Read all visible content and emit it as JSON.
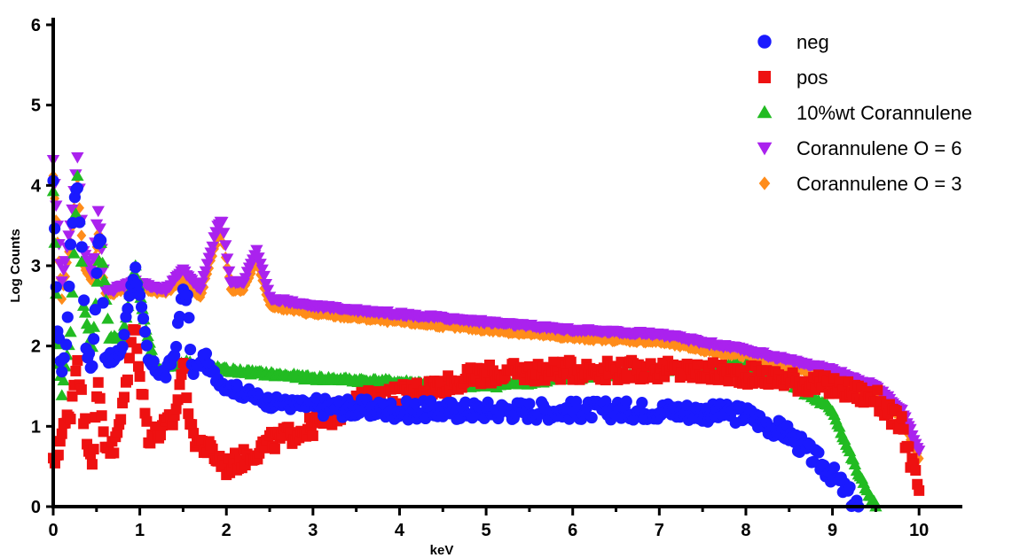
{
  "chart_data": {
    "type": "scatter",
    "xlabel": "keV",
    "ylabel": "Log Counts",
    "xlim": [
      0,
      10.5
    ],
    "ylim": [
      0,
      6
    ],
    "x_ticks": [
      0,
      1,
      2,
      3,
      4,
      5,
      6,
      7,
      8,
      9,
      10
    ],
    "y_ticks": [
      0,
      1,
      2,
      3,
      4,
      5,
      6
    ],
    "legend_position": "top-right",
    "series": [
      {
        "name": "neg",
        "color": "#1a1aff",
        "marker": "circle",
        "x": [
          0.0,
          0.05,
          0.1,
          0.15,
          0.2,
          0.25,
          0.28,
          0.33,
          0.38,
          0.45,
          0.52,
          0.55,
          0.6,
          0.7,
          0.8,
          0.9,
          0.95,
          1.0,
          1.1,
          1.2,
          1.3,
          1.4,
          1.5,
          1.55,
          1.6,
          1.7,
          1.75,
          1.8,
          2.0,
          2.5,
          3.0,
          4.0,
          5.0,
          6.0,
          7.0,
          8.0,
          8.5,
          8.8,
          9.0,
          9.3
        ],
        "y": [
          4.0,
          2.2,
          1.7,
          2.0,
          3.2,
          3.9,
          4.0,
          3.2,
          2.0,
          1.7,
          3.3,
          3.3,
          1.9,
          1.8,
          2.0,
          2.8,
          2.95,
          2.6,
          1.8,
          1.7,
          1.65,
          1.9,
          2.7,
          2.6,
          1.7,
          1.75,
          1.9,
          1.7,
          1.5,
          1.3,
          1.25,
          1.2,
          1.2,
          1.2,
          1.2,
          1.15,
          0.9,
          0.6,
          0.4,
          0.0
        ]
      },
      {
        "name": "pos",
        "color": "#ee1111",
        "marker": "square",
        "x": [
          0.0,
          0.1,
          0.2,
          0.28,
          0.35,
          0.45,
          0.52,
          0.6,
          0.7,
          0.8,
          0.9,
          0.95,
          1.0,
          1.1,
          1.2,
          1.3,
          1.4,
          1.5,
          1.6,
          1.8,
          2.0,
          2.2,
          2.5,
          3.0,
          3.5,
          4.0,
          5.0,
          6.0,
          7.0,
          8.0,
          9.0,
          9.5,
          9.8,
          10.0
        ],
        "y": [
          0.5,
          0.9,
          1.2,
          1.9,
          1.1,
          0.6,
          1.5,
          0.8,
          0.7,
          1.2,
          2.0,
          2.3,
          1.6,
          0.9,
          0.9,
          1.0,
          1.1,
          1.8,
          0.9,
          0.7,
          0.5,
          0.6,
          0.8,
          1.0,
          1.3,
          1.4,
          1.65,
          1.7,
          1.7,
          1.65,
          1.5,
          1.35,
          1.0,
          0.2
        ]
      },
      {
        "name": "10%wt Corannulene",
        "color": "#22bb22",
        "marker": "triangle-up",
        "x": [
          0.0,
          0.05,
          0.1,
          0.2,
          0.28,
          0.35,
          0.45,
          0.55,
          0.65,
          0.8,
          0.95,
          1.05,
          1.2,
          1.5,
          2.0,
          3.0,
          4.0,
          5.0,
          6.0,
          7.0,
          8.0,
          8.5,
          9.0,
          9.3,
          9.5
        ],
        "y": [
          3.9,
          2.0,
          1.4,
          2.2,
          4.1,
          2.5,
          2.0,
          3.3,
          2.1,
          2.1,
          3.0,
          2.3,
          1.7,
          1.8,
          1.7,
          1.6,
          1.55,
          1.5,
          1.6,
          1.7,
          1.75,
          1.55,
          1.2,
          0.4,
          0.0
        ]
      },
      {
        "name": "Corannulene O = 6",
        "color": "#aa22ee",
        "marker": "triangle-down",
        "x": [
          0.0,
          0.05,
          0.1,
          0.2,
          0.28,
          0.35,
          0.45,
          0.52,
          0.6,
          0.7,
          0.8,
          0.95,
          1.1,
          1.3,
          1.5,
          1.7,
          1.9,
          1.95,
          2.05,
          2.2,
          2.35,
          2.5,
          3.0,
          4.0,
          5.0,
          6.0,
          7.0,
          8.0,
          9.0,
          9.5,
          9.8,
          10.0
        ],
        "y": [
          4.3,
          3.5,
          2.8,
          3.5,
          4.35,
          3.2,
          2.9,
          3.7,
          2.7,
          2.7,
          2.75,
          2.8,
          2.75,
          2.7,
          2.95,
          2.7,
          3.5,
          3.55,
          2.8,
          2.8,
          3.2,
          2.6,
          2.5,
          2.4,
          2.3,
          2.2,
          2.15,
          1.95,
          1.7,
          1.5,
          1.2,
          0.7
        ]
      },
      {
        "name": "Corannulene O = 3",
        "color": "#ff8c1a",
        "marker": "diamond",
        "x": [
          0.0,
          0.05,
          0.1,
          0.2,
          0.28,
          0.35,
          0.45,
          0.52,
          0.6,
          0.7,
          0.8,
          0.95,
          1.1,
          1.3,
          1.5,
          1.7,
          1.9,
          1.95,
          2.05,
          2.2,
          2.35,
          2.5,
          3.0,
          4.0,
          5.0,
          6.0,
          7.0,
          8.0,
          9.0,
          9.5,
          9.8,
          10.0
        ],
        "y": [
          4.1,
          3.3,
          2.6,
          3.3,
          4.1,
          3.0,
          2.8,
          3.4,
          2.65,
          2.65,
          2.7,
          2.75,
          2.7,
          2.65,
          2.85,
          2.6,
          3.35,
          3.4,
          2.7,
          2.7,
          3.05,
          2.5,
          2.4,
          2.3,
          2.2,
          2.1,
          2.05,
          1.85,
          1.6,
          1.4,
          1.1,
          0.6
        ]
      }
    ]
  }
}
